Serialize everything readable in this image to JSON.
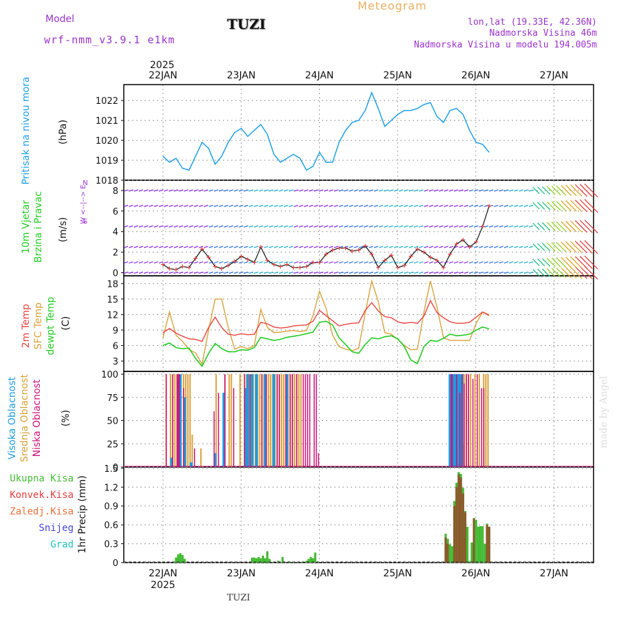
{
  "header": {
    "model_label": "Model",
    "model_name": "wrf-nmm_v3.9.1  e1km",
    "station": "TUZI",
    "product": "Meteogram",
    "lonlat": "lon,lat (19.33E, 42.36N)",
    "elevation": "Nadmorska Visina 46m",
    "model_elevation": "Nadmorska Visina u modelu 194.005m",
    "footer_station": "TUZI",
    "watermark": "made by Angel"
  },
  "colors": {
    "pressure": "#1ea0e6",
    "temp2m": "#e8423c",
    "sfc_temp": "#d9a13a",
    "dewpoint": "#22cc22",
    "high_cloud": "#1e9be0",
    "mid_cloud": "#d9a13a",
    "low_cloud": "#cc1177",
    "precip_total": "#44bb33",
    "precip_conv": "#e83c3c",
    "precip_frz": "#e8703c",
    "snow": "#4444dd",
    "hail": "#22c0c0",
    "header_purple": "#9933cc",
    "header_orange": "#e8b060"
  },
  "chart_data": [
    {
      "type": "line",
      "panel": "pressure",
      "ylabel_title": "Pritisak na nivou mora",
      "ylabel_unit": "(hPa)",
      "ylim": [
        1018,
        1022.8
      ],
      "yticks": [
        "1018",
        "1019",
        "1020",
        "1021",
        "1022"
      ],
      "xticks": [
        "22JAN",
        "23JAN",
        "24JAN",
        "25JAN",
        "26JAN",
        "27JAN"
      ],
      "year_label": "2025",
      "x_hours": [
        0,
        3,
        6,
        9,
        12,
        15,
        18,
        21,
        24,
        27,
        30,
        33,
        36,
        39,
        42,
        45,
        48,
        51,
        54,
        57,
        60,
        63,
        66,
        69,
        72,
        75,
        78,
        81,
        84,
        87,
        90,
        93,
        96,
        99,
        102,
        105,
        108,
        111,
        114,
        117,
        120,
        123,
        126,
        129,
        132,
        135,
        138,
        141,
        144,
        147,
        150
      ],
      "series": [
        {
          "values": [
            1019.2,
            1018.9,
            1019.1,
            1018.6,
            1018.5,
            1019.2,
            1019.9,
            1019.6,
            1018.8,
            1019.2,
            1019.9,
            1020.4,
            1020.6,
            1020.2,
            1020.5,
            1020.8,
            1020.3,
            1019.3,
            1018.9,
            1019.1,
            1019.3,
            1019.1,
            1018.5,
            1018.7,
            1019.4,
            1018.9,
            1018.9,
            1019.9,
            1020.5,
            1020.9,
            1021.0,
            1021.5,
            1022.4,
            1021.6,
            1020.7,
            1021.0,
            1021.3,
            1021.5,
            1021.5,
            1021.6,
            1021.8,
            1021.9,
            1021.2,
            1020.9,
            1021.5,
            1021.6,
            1021.3,
            1020.5,
            1019.9,
            1019.8,
            1019.4
          ]
        }
      ]
    },
    {
      "type": "line",
      "panel": "wind",
      "ylabel_title": "10m Vjetar",
      "ylabel_title2": "Brzina i Pravac",
      "ylabel_unit": "(m/s)",
      "compass_label": "W  <--|-->  E",
      "compass_n": "N",
      "compass_s": "S",
      "ylim": [
        -0.3,
        9
      ],
      "yticks": [
        "0",
        "2",
        "4",
        "6",
        "8"
      ],
      "x_hours": [
        0,
        3,
        6,
        9,
        12,
        15,
        18,
        21,
        24,
        27,
        30,
        33,
        36,
        39,
        42,
        45,
        48,
        51,
        54,
        57,
        60,
        63,
        66,
        69,
        72,
        75,
        78,
        81,
        84,
        87,
        90,
        93,
        96,
        99,
        102,
        105,
        108,
        111,
        114,
        117,
        120,
        123,
        126,
        129,
        132,
        135,
        138,
        141,
        144,
        147,
        150
      ],
      "series": [
        {
          "values": [
            0.8,
            0.4,
            0.3,
            0.6,
            0.5,
            1.4,
            2.3,
            1.5,
            0.6,
            0.4,
            0.7,
            1.1,
            1.6,
            1.3,
            1.0,
            2.5,
            1.2,
            0.8,
            0.6,
            0.8,
            0.5,
            0.5,
            0.6,
            1.0,
            1.0,
            1.8,
            2.2,
            2.4,
            2.4,
            2.1,
            2.2,
            2.6,
            1.8,
            0.5,
            1.2,
            1.7,
            0.5,
            0.7,
            1.6,
            2.3,
            2.0,
            1.5,
            1.2,
            0.5,
            1.8,
            2.8,
            3.2,
            2.5,
            3.0,
            4.5,
            6.5
          ]
        },
        {
          "values": [
            0.8,
            0.4,
            0.3,
            0.6,
            0.5,
            1.4,
            2.3,
            1.5,
            0.6,
            0.4,
            0.7,
            1.1,
            1.6,
            1.3,
            1.0,
            2.5,
            1.2,
            0.8,
            0.6,
            0.8,
            0.5,
            0.5,
            0.6,
            1.0,
            1.0,
            1.8,
            2.2,
            2.4,
            2.4,
            2.1,
            2.2,
            2.6,
            1.8,
            0.5,
            1.2,
            1.7,
            0.5,
            0.7,
            1.6,
            2.3,
            2.0,
            1.5,
            1.2,
            0.5,
            1.8,
            2.8,
            3.2,
            2.5,
            3.0,
            4.5,
            6.5
          ]
        }
      ]
    },
    {
      "type": "line",
      "panel": "temperature",
      "ylabel_t2m": "2m Temp",
      "ylabel_sfc": "SFC Temp",
      "ylabel_dew": "dewpt Temp",
      "ylabel_unit": "(C)",
      "ylim": [
        1,
        19.5
      ],
      "yticks": [
        "3",
        "6",
        "9",
        "12",
        "15",
        "18"
      ],
      "x_hours": [
        0,
        3,
        6,
        9,
        12,
        15,
        18,
        21,
        24,
        27,
        30,
        33,
        36,
        39,
        42,
        45,
        48,
        51,
        54,
        57,
        60,
        63,
        66,
        69,
        72,
        75,
        78,
        81,
        84,
        87,
        90,
        93,
        96,
        99,
        102,
        105,
        108,
        111,
        114,
        117,
        120,
        123,
        126,
        129,
        132,
        135,
        138,
        141,
        144,
        147,
        150
      ],
      "series": [
        {
          "name": "2m Temp",
          "values": [
            8.5,
            9.3,
            8.4,
            7.8,
            7.3,
            7.2,
            6.8,
            9.5,
            11.5,
            9.5,
            8.2,
            8.0,
            8.3,
            8.1,
            8.2,
            10.5,
            10.2,
            9.6,
            9.4,
            9.5,
            9.8,
            9.9,
            10.0,
            10.7,
            12.8,
            11.8,
            10.8,
            9.8,
            10.1,
            10.3,
            10.4,
            12.8,
            14.3,
            12.7,
            11.6,
            11.4,
            10.6,
            10.3,
            10.5,
            10.3,
            11.7,
            14.7,
            12.4,
            11.4,
            10.6,
            10.3,
            10.3,
            10.5,
            11.5,
            12.5,
            11.8
          ]
        },
        {
          "name": "SFC Temp",
          "values": [
            7.5,
            12.5,
            8.0,
            6.8,
            5.2,
            4.6,
            2.4,
            9.0,
            15.0,
            15.0,
            9.5,
            5.3,
            5.8,
            5.4,
            6.0,
            13.0,
            9.5,
            8.5,
            8.6,
            8.8,
            8.9,
            8.7,
            8.9,
            11.8,
            16.5,
            13.2,
            8.0,
            5.8,
            5.3,
            5.0,
            5.5,
            12.3,
            18.5,
            14.5,
            8.5,
            8.2,
            7.2,
            6.0,
            5.2,
            5.3,
            12.5,
            18.5,
            13.5,
            7.5,
            7.0,
            7.0,
            7.0,
            7.0,
            10.3,
            12.5,
            12.0
          ]
        },
        {
          "name": "dewpt Temp",
          "values": [
            6.0,
            6.5,
            5.6,
            5.4,
            5.5,
            3.5,
            2.0,
            4.5,
            6.4,
            5.4,
            4.8,
            4.8,
            5.2,
            5.1,
            5.6,
            7.6,
            7.3,
            7.0,
            7.2,
            7.6,
            7.8,
            8.0,
            8.3,
            8.6,
            10.5,
            10.7,
            10.0,
            7.5,
            6.2,
            4.8,
            4.5,
            6.2,
            7.5,
            7.3,
            7.7,
            7.9,
            7.3,
            5.8,
            3.2,
            2.5,
            5.8,
            7.0,
            6.8,
            7.4,
            8.2,
            7.9,
            8.0,
            8.2,
            9.0,
            9.6,
            9.2
          ]
        }
      ]
    },
    {
      "type": "bar",
      "panel": "clouds",
      "ylabel_high": "Visoka Oblacnost",
      "ylabel_mid": "Srednja Oblacnost",
      "ylabel_low": "Niska Oblacnost",
      "ylabel_unit": "(%)",
      "ylim": [
        0,
        103
      ],
      "yticks": [
        "0",
        "25",
        "50",
        "75",
        "100"
      ],
      "x_hours": [
        1,
        2,
        3,
        4,
        5,
        6,
        7,
        7.5,
        8,
        9,
        10,
        11,
        12,
        13,
        15,
        17,
        20,
        24,
        26,
        28,
        29,
        30,
        31,
        33,
        35,
        37,
        38,
        39,
        40,
        40.5,
        41,
        42,
        43,
        44,
        45,
        46,
        47,
        48,
        49,
        50,
        51,
        52,
        53,
        54,
        55,
        56,
        57,
        58,
        59,
        60,
        61,
        62,
        63,
        65,
        66,
        67,
        68,
        70,
        71,
        72,
        73,
        75,
        132,
        132.5,
        133,
        133.5,
        134,
        134.5,
        135,
        135.5,
        136,
        136.5,
        137,
        137.5,
        138,
        139,
        140,
        141,
        143,
        145,
        147,
        148,
        149
      ],
      "series": [
        {
          "name": "Visoka Oblacnost",
          "values": [
            0,
            0,
            0,
            10,
            0,
            0,
            95,
            0,
            100,
            0,
            75,
            0,
            0,
            5,
            0,
            0,
            0,
            15,
            0,
            80,
            0,
            0,
            0,
            0,
            0,
            0,
            85,
            100,
            0,
            0,
            100,
            0,
            100,
            0,
            0,
            0,
            100,
            0,
            0,
            0,
            100,
            0,
            0,
            0,
            0,
            0,
            100,
            0,
            0,
            0,
            0,
            0,
            0,
            0,
            0,
            0,
            0,
            0,
            0,
            0,
            0,
            0,
            100,
            100,
            100,
            100,
            0,
            100,
            100,
            100,
            100,
            0,
            100,
            100,
            0,
            0,
            0,
            0,
            0,
            0,
            0,
            0,
            0
          ]
        },
        {
          "name": "Srednja Oblacnost",
          "values": [
            100,
            0,
            100,
            100,
            100,
            100,
            100,
            100,
            0,
            100,
            100,
            100,
            100,
            35,
            0,
            20,
            0,
            100,
            0,
            100,
            0,
            100,
            100,
            0,
            100,
            100,
            100,
            100,
            100,
            0,
            100,
            100,
            100,
            100,
            100,
            100,
            100,
            100,
            100,
            100,
            100,
            100,
            100,
            100,
            100,
            100,
            100,
            100,
            100,
            100,
            100,
            100,
            100,
            0,
            0,
            0,
            0,
            0,
            0,
            0,
            0,
            0,
            100,
            100,
            0,
            100,
            100,
            100,
            100,
            0,
            100,
            100,
            100,
            25,
            100,
            100,
            100,
            100,
            100,
            100,
            100,
            100,
            100
          ]
        },
        {
          "name": "Niska Oblacnost",
          "values": [
            0,
            100,
            0,
            0,
            100,
            0,
            100,
            100,
            100,
            0,
            85,
            0,
            0,
            0,
            20,
            0,
            0,
            60,
            80,
            0,
            100,
            0,
            0,
            85,
            0,
            0,
            100,
            0,
            0,
            100,
            0,
            0,
            0,
            0,
            0,
            100,
            0,
            100,
            0,
            0,
            0,
            0,
            100,
            100,
            0,
            0,
            100,
            0,
            100,
            100,
            0,
            100,
            0,
            100,
            100,
            100,
            100,
            100,
            100,
            15,
            0,
            0,
            0,
            0,
            100,
            100,
            0,
            0,
            0,
            100,
            0,
            0,
            80,
            0,
            100,
            90,
            100,
            100,
            95,
            100,
            85,
            85,
            0
          ]
        }
      ]
    },
    {
      "type": "bar",
      "panel": "precipitation",
      "ylabel_unit": "1hr Precip (mm)",
      "legend": [
        "Ukupna Kisa",
        "Konvek.Kisa",
        "Zaledj.Kisa",
        "Snijeg",
        "Grad"
      ],
      "ylim": [
        0,
        1.52
      ],
      "yticks": [
        "0",
        "0.3",
        "0.6",
        "0.9",
        "1.2",
        "1.5"
      ],
      "xticks": [
        "22JAN",
        "23JAN",
        "24JAN",
        "25JAN",
        "26JAN",
        "27JAN"
      ],
      "year_label": "2025",
      "x_hours": [
        6,
        7,
        8,
        9,
        10,
        41,
        42,
        43,
        44,
        45,
        46,
        47,
        48,
        49,
        53,
        55,
        58,
        60,
        64,
        66,
        67,
        68,
        69,
        70,
        130,
        131,
        132,
        133,
        134,
        135,
        136,
        137,
        138,
        139,
        140,
        141,
        142,
        143,
        144,
        145,
        146,
        147,
        148,
        149,
        150
      ],
      "series": [
        {
          "name": "Ukupna Kisa",
          "values": [
            0.08,
            0.13,
            0.15,
            0.12,
            0.06,
            0.08,
            0.08,
            0.07,
            0.09,
            0.07,
            0.11,
            0.07,
            0.18,
            0.06,
            0.03,
            0.09,
            0.02,
            0.01,
            0.01,
            0.03,
            0.06,
            0.09,
            0.07,
            0.16,
            0.46,
            0.38,
            0.29,
            0.26,
            0.98,
            1.27,
            1.44,
            1.41,
            1.19,
            0.82,
            0.57,
            0.02,
            0.32,
            0.71,
            0.68,
            0.57,
            0.58,
            0.58,
            0.3,
            0.62,
            0.57
          ]
        },
        {
          "name": "Konvek.Kisa",
          "values": [
            0,
            0,
            0,
            0,
            0,
            0,
            0,
            0,
            0,
            0,
            0,
            0,
            0,
            0,
            0,
            0,
            0,
            0,
            0,
            0,
            0,
            0,
            0,
            0,
            0.4,
            0.3,
            0,
            0,
            0.9,
            1.2,
            1.4,
            1.35,
            1.1,
            0.8,
            0,
            0,
            0,
            0.7,
            0,
            0,
            0,
            0,
            0,
            0.6,
            0.57
          ]
        }
      ]
    }
  ]
}
